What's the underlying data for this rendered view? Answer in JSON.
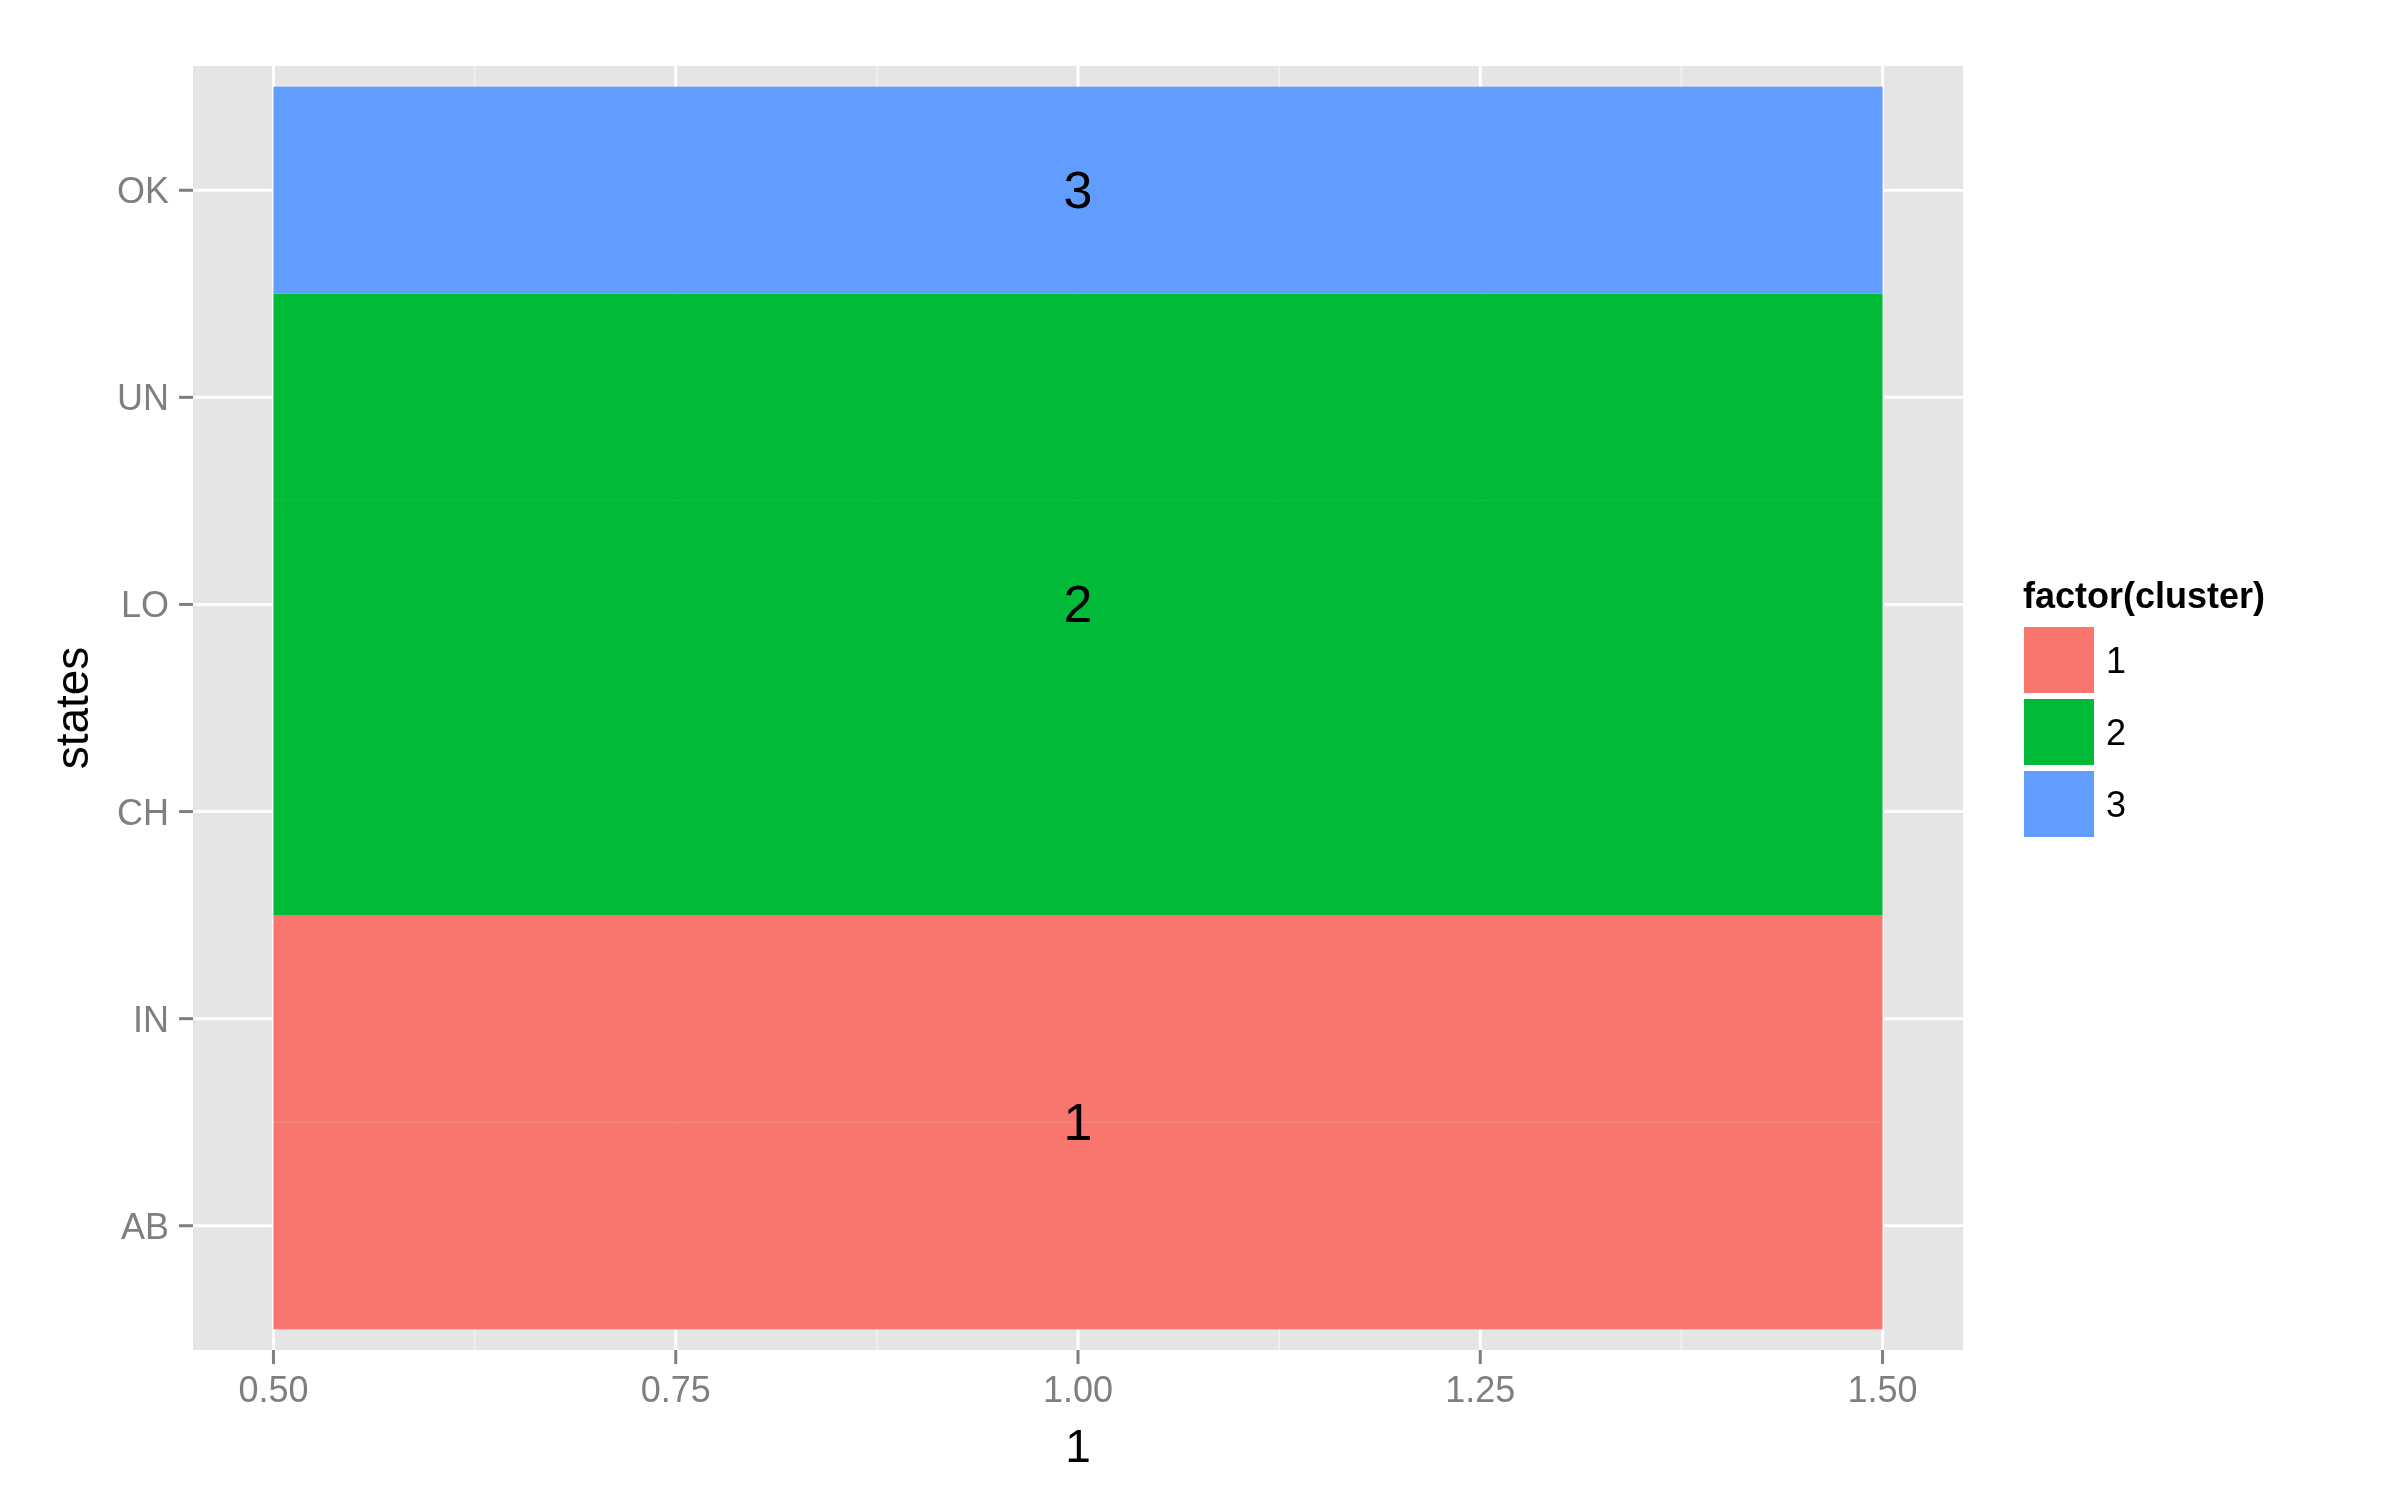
{
  "chart_data": {
    "type": "bar",
    "orientation": "horizontal",
    "stacked": true,
    "xlabel": "1",
    "ylabel": "states",
    "legend_title": "factor(cluster)",
    "legend": "right",
    "grid": true,
    "categories": [
      "OK",
      "UN",
      "LO",
      "CH",
      "IN",
      "AB"
    ],
    "xlim": [
      0.45,
      1.55
    ],
    "xticks": [
      {
        "value": 0.5,
        "label": "0.50"
      },
      {
        "value": 0.75,
        "label": "0.75"
      },
      {
        "value": 1,
        "label": "1.00"
      },
      {
        "value": 1.25,
        "label": "1.25"
      },
      {
        "value": 1.5,
        "label": "1.50"
      }
    ],
    "series": [
      {
        "name": "1",
        "color": "#f8766d",
        "base": [
          null,
          null,
          null,
          null,
          0.5,
          0.5
        ],
        "values": [
          null,
          null,
          null,
          null,
          1,
          1
        ]
      },
      {
        "name": "2",
        "color": "#00ba38",
        "base": [
          null,
          0.5,
          0.5,
          0.5,
          null,
          null
        ],
        "values": [
          null,
          1,
          1,
          1,
          null,
          null
        ]
      },
      {
        "name": "3",
        "color": "#619cff",
        "base": [
          0.5,
          null,
          null,
          null,
          null,
          null
        ],
        "values": [
          1,
          null,
          null,
          null,
          null,
          null
        ]
      }
    ]
  }
}
